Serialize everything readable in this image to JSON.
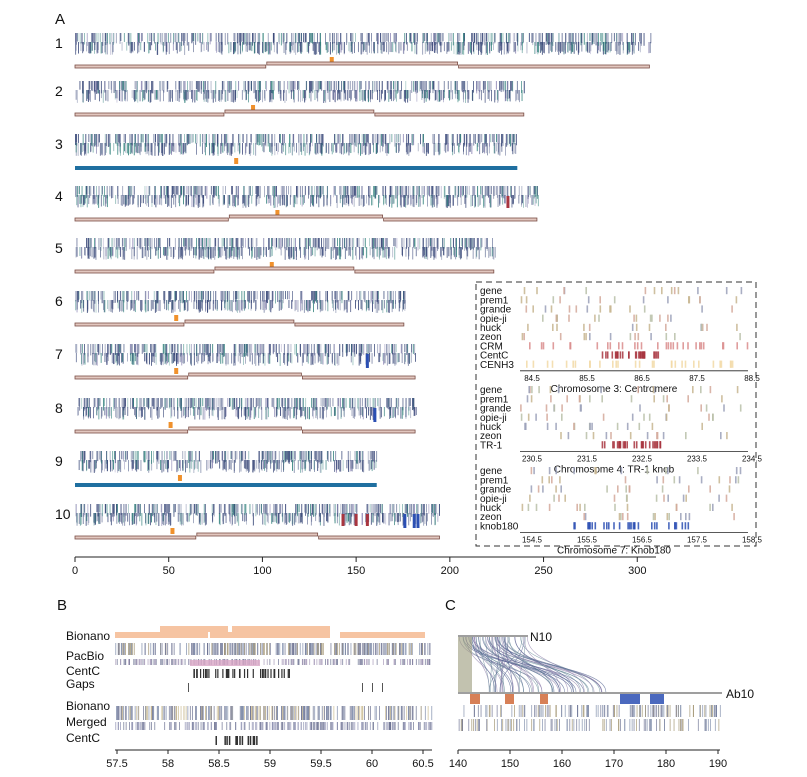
{
  "figure": {
    "panel_labels": [
      "A",
      "B",
      "C"
    ]
  },
  "colors": {
    "strip_dark": "#3b4a7a",
    "strip_teal": "#2f7f7a",
    "track_fill": "#e2c7bf",
    "track_border": "#7a4e46",
    "centromere": "#f0912c",
    "complete": "#1f6fa0",
    "knob180": "#2b4fb3",
    "tr1": "#a8353f",
    "bionano": "#f6c4a2",
    "pacbio_pink": "#d9a6c6",
    "cenh3": "#f2d9a6"
  },
  "chart_data": [
    {
      "panel": "A",
      "type": "chromosome-map",
      "xlim": [
        0,
        310
      ],
      "xticks": [
        0,
        50,
        100,
        150,
        200,
        250,
        300
      ],
      "chromosomes": [
        {
          "label": "1",
          "length": 307,
          "centromere": 137,
          "complete": false,
          "tr1": [],
          "knob180": []
        },
        {
          "label": "2",
          "length": 240,
          "centromere": 95,
          "complete": false,
          "tr1": [],
          "knob180": []
        },
        {
          "label": "3",
          "length": 236,
          "centromere": 86,
          "complete": true,
          "tr1": [],
          "knob180": []
        },
        {
          "label": "4",
          "length": 247,
          "centromere": 108,
          "complete": false,
          "tr1": [
            231
          ],
          "knob180": []
        },
        {
          "label": "5",
          "length": 224,
          "centromere": 105,
          "complete": false,
          "tr1": [],
          "knob180": []
        },
        {
          "label": "6",
          "length": 176,
          "centromere": 54,
          "complete": false,
          "tr1": [],
          "knob180": []
        },
        {
          "label": "7",
          "length": 182,
          "centromere": 54,
          "complete": false,
          "tr1": [],
          "knob180": [
            156
          ]
        },
        {
          "label": "8",
          "length": 182,
          "centromere": 51,
          "complete": false,
          "tr1": [],
          "knob180": [
            160
          ]
        },
        {
          "label": "9",
          "length": 161,
          "centromere": 56,
          "complete": true,
          "tr1": [],
          "knob180": []
        },
        {
          "label": "10",
          "length": 195,
          "centromere": 52,
          "complete": false,
          "tr1": [
            143,
            150,
            156
          ],
          "knob180": [
            176,
            181,
            183
          ]
        }
      ]
    },
    {
      "panel": "A-inset-1",
      "type": "heatmap",
      "title": "Chromosome 3: Centromere",
      "tracks": [
        "gene",
        "prem1",
        "grande",
        "opie-ji",
        "huck",
        "zeon",
        "CRM",
        "CentC",
        "CENH3"
      ],
      "xticks": [
        "84.5",
        "85.5",
        "86.5",
        "87.5",
        "88.5"
      ]
    },
    {
      "panel": "A-inset-2",
      "type": "heatmap",
      "title": "Chromosome 4: TR-1 knob",
      "tracks": [
        "gene",
        "prem1",
        "grande",
        "opie-ji",
        "huck",
        "zeon",
        "TR-1"
      ],
      "xticks": [
        "230.5",
        "231.5",
        "232.5",
        "233.5",
        "234.5"
      ]
    },
    {
      "panel": "A-inset-3",
      "type": "heatmap",
      "title": "Chromosome 7: Knob180",
      "tracks": [
        "gene",
        "prem1",
        "grande",
        "opie-ji",
        "huck",
        "zeon",
        "knob180"
      ],
      "xticks": [
        "154.5",
        "155.5",
        "156.5",
        "157.5",
        "158.5"
      ]
    },
    {
      "panel": "B",
      "type": "alignment",
      "rows": [
        "Bionano",
        "PacBio",
        "CentC",
        "Gaps",
        "Bionano",
        "Merged",
        "CentC"
      ],
      "xticks": [
        "57.5",
        "58",
        "58.5",
        "59",
        "59.5",
        "60",
        "60.5"
      ]
    },
    {
      "panel": "C",
      "type": "alignment",
      "labels": [
        "N10",
        "Ab10"
      ],
      "xticks": [
        "140",
        "150",
        "160",
        "170",
        "180",
        "190"
      ]
    }
  ]
}
